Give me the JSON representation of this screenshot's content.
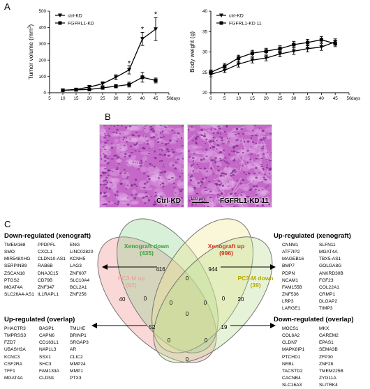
{
  "panels": {
    "a": "A",
    "b": "B",
    "c": "C"
  },
  "chart_data": [
    {
      "type": "line",
      "title": "",
      "xlabel": "days",
      "ylabel": "Tumor volume (mm³)",
      "ylabel_parts": [
        "Tumor volume (mm",
        "3",
        ")"
      ],
      "xlim": [
        5,
        50
      ],
      "ylim": [
        0,
        500
      ],
      "xticks": [
        5,
        10,
        15,
        20,
        25,
        30,
        35,
        40,
        45,
        50
      ],
      "yticks": [
        0,
        100,
        200,
        300,
        400,
        500
      ],
      "legend": "top-left",
      "series": [
        {
          "name": "ctrl-KD",
          "marker": "triangle-down",
          "x": [
            10,
            15,
            20,
            25,
            30,
            35,
            40,
            45
          ],
          "y": [
            15,
            20,
            35,
            55,
            95,
            140,
            330,
            390
          ],
          "err": [
            5,
            5,
            10,
            12,
            15,
            25,
            40,
            70
          ]
        },
        {
          "name": "FGFRL1-KD",
          "marker": "square",
          "x": [
            10,
            15,
            20,
            25,
            30,
            35,
            40,
            45
          ],
          "y": [
            15,
            18,
            20,
            30,
            40,
            50,
            95,
            75
          ],
          "err": [
            4,
            4,
            5,
            8,
            10,
            15,
            30,
            15
          ]
        }
      ],
      "annotations": [
        {
          "x": 35,
          "y": 165,
          "text": "*"
        },
        {
          "x": 40,
          "y": 375,
          "text": "*"
        },
        {
          "x": 45,
          "y": 465,
          "text": "*"
        }
      ]
    },
    {
      "type": "line",
      "title": "",
      "xlabel": "days",
      "ylabel": "Body weight (g)",
      "xlim": [
        0,
        50
      ],
      "ylim": [
        20,
        40
      ],
      "xticks": [
        0,
        5,
        10,
        15,
        20,
        25,
        30,
        35,
        40,
        45,
        50
      ],
      "yticks": [
        20,
        25,
        30,
        35,
        40
      ],
      "legend": "top-left",
      "series": [
        {
          "name": "ctrl-KD",
          "marker": "triangle-down",
          "x": [
            0,
            5,
            10,
            15,
            20,
            25,
            30,
            35,
            40,
            45
          ],
          "y": [
            24.5,
            25.5,
            27,
            28,
            28.5,
            29.5,
            30.2,
            30.8,
            31.2,
            32.5
          ],
          "err": [
            0.6,
            0.6,
            0.7,
            0.7,
            0.7,
            0.7,
            0.8,
            0.8,
            0.8,
            0.7
          ]
        },
        {
          "name": "FGFRL1-KD 11",
          "marker": "square",
          "x": [
            0,
            5,
            10,
            15,
            20,
            25,
            30,
            35,
            40,
            45
          ],
          "y": [
            25,
            26.5,
            28.5,
            29.7,
            30.2,
            30.8,
            31.8,
            32.3,
            33,
            32
          ],
          "err": [
            0.6,
            0.7,
            0.7,
            0.7,
            0.7,
            0.7,
            0.8,
            0.8,
            0.8,
            0.7
          ]
        }
      ]
    }
  ],
  "histology": {
    "left_label": "Ctrl-KD",
    "right_label": "FGFRL1-KD 11",
    "scale_bar": "100 μm",
    "tissue_base": "#c469c8",
    "tissue_dark": "#7a2a8c",
    "tissue_light": "#e6b8ea"
  },
  "venn": {
    "sets": [
      {
        "name": "PC3-M up",
        "count": "(92)",
        "color": "#e89a94"
      },
      {
        "name": "Xenograft down",
        "count": "(435)",
        "color": "#3aa13a"
      },
      {
        "name": "Xenograft up",
        "count": "(996)",
        "color": "#d7301f"
      },
      {
        "name": "PC3-M down",
        "count": "(39)",
        "color": "#b6a800"
      }
    ],
    "regions": [
      "416",
      "944",
      "40",
      "0",
      "0",
      "20",
      "0",
      "0",
      "0",
      "52",
      "19",
      "0",
      "0",
      "0",
      "0"
    ]
  },
  "gene_lists": {
    "down_xenograft": {
      "title": "Down-regulated (xenograft)",
      "col1": [
        "TMEM168",
        "SMO",
        "MIR548XHG",
        "SERPINB9",
        "ZSCAN18",
        "PTGS2",
        "MGAT4A",
        "SLC26A4-AS1"
      ],
      "col2": [
        "PPDPFL",
        "CXCL1",
        "CLDN10-AS1",
        "RAB6B",
        "DNAJC15",
        "CD79B",
        "ZNF347",
        "IL1RAPL1"
      ],
      "col3": [
        "ENG",
        "LINC02820",
        "KCNH5",
        "LAG3",
        "ZNF607",
        "SLC10A4",
        "BCL2A1",
        "ZNF256"
      ]
    },
    "up_xenograft": {
      "title": "Up-regulated (xenograft)",
      "col1": [
        "CNNM1",
        "ATF7IP2",
        "MAGEB16",
        "BMP7",
        "PDPN",
        "NCAM1",
        "FAM155B",
        "ZNF536",
        "LRP3",
        "LARGE1"
      ],
      "col2": [
        "SLFN11",
        "MGAT4A",
        "TBX5-AS1",
        "GOLGA8G",
        "ANKRD30B",
        "FGF23",
        "COL22A1",
        "CRMP1",
        "DLGAP2",
        "TIMP3"
      ]
    },
    "up_overlap": {
      "title": "Up-regulated (overlap)",
      "col1": [
        "PHACTR3",
        "TMPRSS3",
        "FZD7",
        "UBASH3A",
        "KCNC3",
        "CSF2RA",
        "TFF1",
        "MGAT4A"
      ],
      "col2": [
        "BASP1",
        "CAPN6",
        "CD163L1",
        "NAP1L3",
        "SSX1",
        "SHC3",
        "FAM133A",
        "CLDN1"
      ],
      "col3": [
        "TMLHE",
        "BRINP1",
        "SRGAP3",
        "AR",
        "CLIC2",
        "MMP24",
        "MMP1",
        "PTX3"
      ]
    },
    "down_overlap": {
      "title": "Down-regulated (overlap)",
      "col1": [
        "MOCS1",
        "COL6A2",
        "CLDN7",
        "MAPK8IP1",
        "PTCHD1",
        "NEBL",
        "TACSTD2",
        "CACNB4",
        "SLC16A3"
      ],
      "col2": [
        "MKX",
        "GAREM2",
        "EPAS1",
        "SEMA3B",
        "ZFP30",
        "ZNF28",
        "TMEM225B",
        "ZYG11A",
        "SLITRK4"
      ]
    }
  }
}
